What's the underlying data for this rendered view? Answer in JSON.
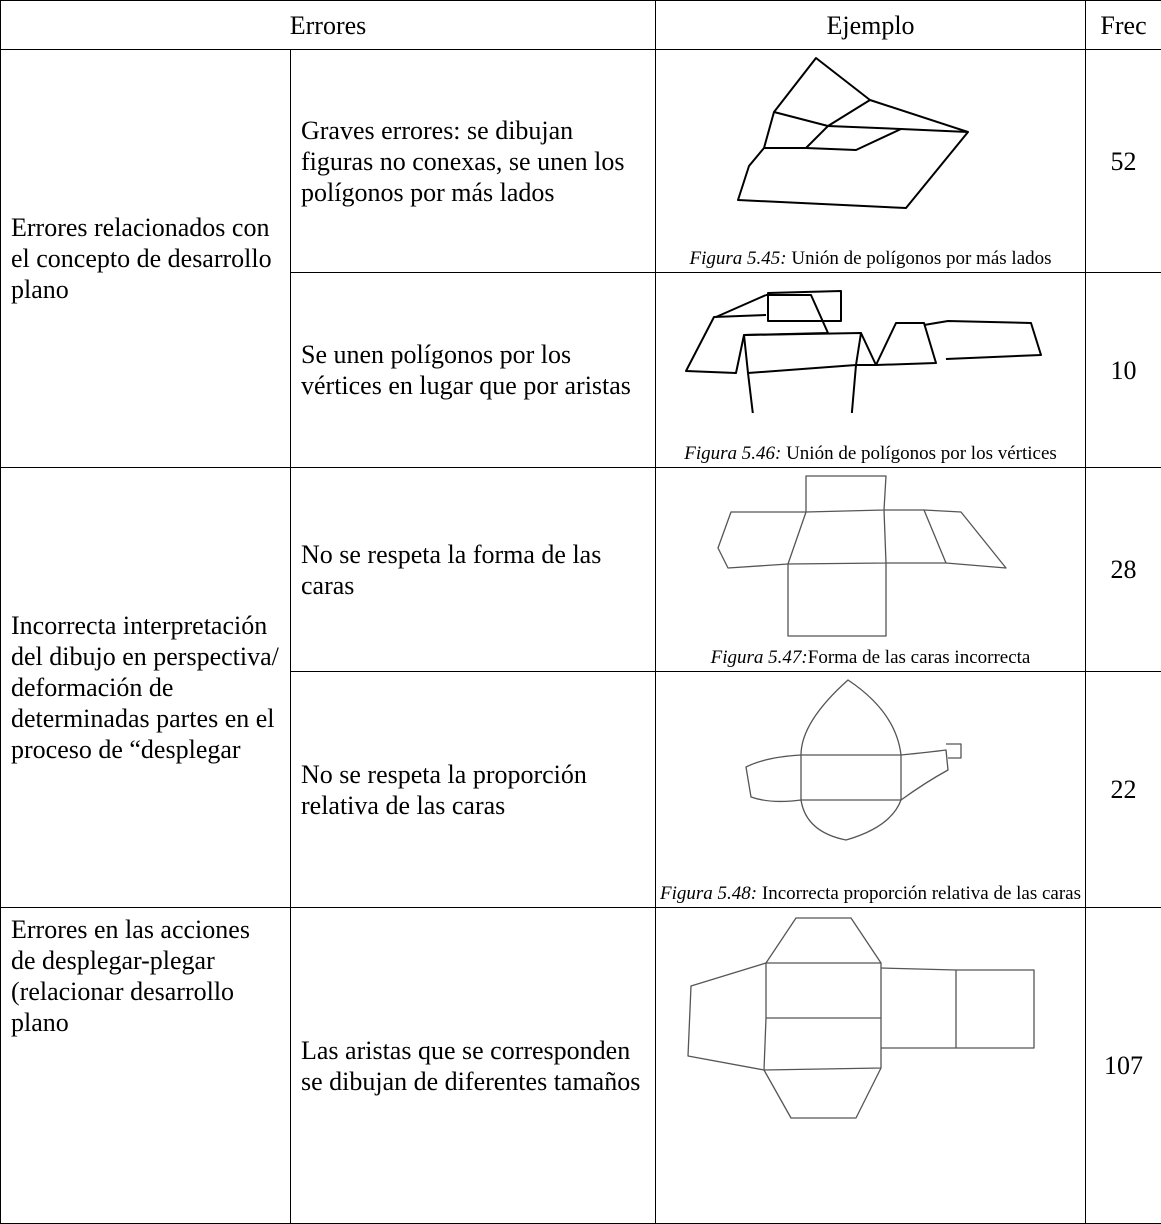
{
  "header": [
    "Errores",
    "Ejemplo",
    "Frec"
  ],
  "groups": [
    {
      "label": "Errores relacionados con el concepto de desarrollo plano",
      "rows": [
        {
          "description": "Graves errores: se dibujan figuras no conexas, se unen los polígonos por más lados",
          "figure": "Figura 5.45:",
          "caption": " Unión de polígonos por más lados",
          "frequency": 52
        },
        {
          "description": "Se unen polígonos por los vértices en lugar que por aristas",
          "figure": "Figura 5.46:",
          "caption": " Unión de polígonos por los vértices",
          "frequency": 10
        }
      ]
    },
    {
      "label": "Incorrecta interpretación del dibujo en perspectiva/ deformación de determinadas partes en el proceso de “desplegar",
      "rows": [
        {
          "description": "No se respeta la forma de las caras",
          "figure": "Figura 5.47:",
          "caption": "Forma de las caras incorrecta",
          "frequency": 28
        },
        {
          "description": "No se respeta la proporción relativa de las caras",
          "figure": "Figura 5.48:",
          "caption": " Incorrecta proporción relativa de las caras",
          "frequency": 22
        }
      ]
    },
    {
      "label": "Errores en las acciones de desplegar-plegar (relacionar desarrollo plano",
      "rows": [
        {
          "description": "Las aristas que se corresponden se dibujan de diferentes tamaños",
          "frequency": 107
        }
      ]
    }
  ]
}
